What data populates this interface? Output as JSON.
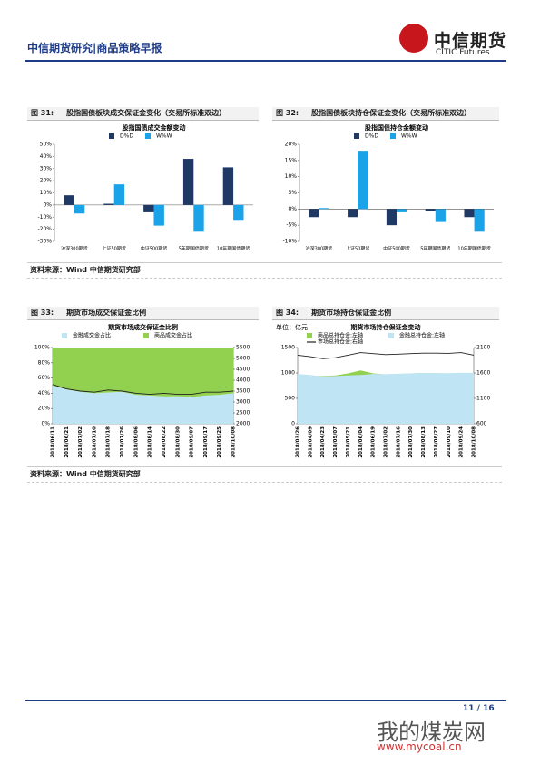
{
  "header": {
    "title": "中信期货研究|商品策略早报",
    "logo_cn": "中信期货",
    "logo_en": "CITIC Futures"
  },
  "chart_data": [
    {
      "type": "bar",
      "figure_label": "图 31:",
      "caption": "股指国债板块成交保证金变化（交易所标准双边）",
      "title": "股指国债成交金额变动",
      "categories": [
        "沪深300期货",
        "上证50期货",
        "中证500期货",
        "5年期国债期货",
        "10年期国债期货"
      ],
      "series": [
        {
          "name": "D%D",
          "color": "#1f3864",
          "values": [
            8,
            1,
            -6,
            38,
            31
          ]
        },
        {
          "name": "W%W",
          "color": "#1aa3e8",
          "values": [
            -7,
            17,
            -17,
            -22,
            -13
          ]
        }
      ],
      "ylim": [
        -30,
        50
      ],
      "yticks": [
        {
          "value": -30,
          "label": "-30%"
        },
        {
          "value": -20,
          "label": "-20%"
        },
        {
          "value": -10,
          "label": "-10%"
        },
        {
          "value": 0,
          "label": "0%"
        },
        {
          "value": 10,
          "label": "10%"
        },
        {
          "value": 20,
          "label": "20%"
        },
        {
          "value": 30,
          "label": "30%"
        },
        {
          "value": 40,
          "label": "40%"
        },
        {
          "value": 50,
          "label": "50%"
        }
      ]
    },
    {
      "type": "bar",
      "figure_label": "图 32:",
      "caption": "股指国债板块持仓保证金变化（交易所标准双边）",
      "title": "股指国债持仓金额变动",
      "categories": [
        "沪深300期货",
        "上证50期货",
        "中证500期货",
        "5年期国债期货",
        "10年期国债期货"
      ],
      "series": [
        {
          "name": "D%D",
          "color": "#1f3864",
          "values": [
            -2.5,
            -2.5,
            -5,
            -0.5,
            -2.5
          ]
        },
        {
          "name": "W%W",
          "color": "#1aa3e8",
          "values": [
            0.3,
            18,
            -1,
            -4,
            -7
          ]
        }
      ],
      "ylim": [
        -10,
        20
      ],
      "yticks": [
        {
          "value": -10,
          "label": "-10%"
        },
        {
          "value": -5,
          "label": "-5%"
        },
        {
          "value": 0,
          "label": "0%"
        },
        {
          "value": 5,
          "label": "5%"
        },
        {
          "value": 10,
          "label": "10%"
        },
        {
          "value": 15,
          "label": "15%"
        },
        {
          "value": 20,
          "label": "20%"
        }
      ]
    },
    {
      "type": "area",
      "figure_label": "图 33:",
      "caption": "期货市场成交保证金比例",
      "title": "期货市场成交保证金比例",
      "stacked": true,
      "x": [
        "2018/06/11",
        "2018/06/21",
        "2018/07/02",
        "2018/07/10",
        "2018/07/18",
        "2018/07/26",
        "2018/08/06",
        "2018/08/14",
        "2018/08/22",
        "2018/08/30",
        "2018/09/07",
        "2018/09/17",
        "2018/09/25",
        "2018/10/08"
      ],
      "series": [
        {
          "name": "金融成交金占比",
          "color": "#bfe5f5",
          "kind": "area",
          "values": [
            50,
            45,
            42,
            40,
            41,
            42,
            38,
            37,
            36,
            36,
            35,
            37,
            38,
            40
          ]
        },
        {
          "name": "商品成交金占比",
          "color": "#92d050",
          "kind": "area",
          "values": [
            50,
            55,
            58,
            60,
            59,
            58,
            62,
            63,
            64,
            64,
            65,
            63,
            62,
            60
          ]
        },
        {
          "color": "#222222",
          "kind": "line",
          "axis": "y2",
          "values": [
            3800,
            3600,
            3500,
            3450,
            3550,
            3500,
            3400,
            3350,
            3400,
            3350,
            3350,
            3450,
            3450,
            3500
          ]
        }
      ],
      "ylim": [
        0,
        100
      ],
      "yticks": [
        {
          "value": 0,
          "label": "0%"
        },
        {
          "value": 20,
          "label": "20%"
        },
        {
          "value": 40,
          "label": "40%"
        },
        {
          "value": 60,
          "label": "60%"
        },
        {
          "value": 80,
          "label": "80%"
        },
        {
          "value": 100,
          "label": "100%"
        }
      ],
      "y2lim": [
        2000,
        5500
      ],
      "y2ticks": [
        2000,
        2500,
        3000,
        3500,
        4000,
        4500,
        5000,
        5500
      ]
    },
    {
      "type": "area",
      "figure_label": "图 34:",
      "caption": "期货市场持仓保证金比例",
      "title": "期货市场持仓保证金变动",
      "unit": "单位：亿元",
      "stacked": false,
      "x": [
        "2018/03/26",
        "2018/04/09",
        "2018/04/23",
        "2018/05/07",
        "2018/05/21",
        "2018/06/04",
        "2018/06/19",
        "2018/07/02",
        "2018/07/16",
        "2018/07/30",
        "2018/08/13",
        "2018/08/27",
        "2018/09/10",
        "2018/09/24",
        "2018/10/08"
      ],
      "series": [
        {
          "name": "商品总持仓金:左轴",
          "color": "#92d050",
          "kind": "area",
          "values": [
            960,
            950,
            940,
            950,
            990,
            1050,
            990,
            970,
            980,
            990,
            1000,
            995,
            990,
            1000,
            1000
          ]
        },
        {
          "name": "金融总持仓金:左轴",
          "color": "#bfe5f5",
          "kind": "area",
          "values": [
            980,
            960,
            930,
            940,
            950,
            960,
            980,
            975,
            985,
            990,
            1000,
            995,
            995,
            1005,
            1000
          ]
        },
        {
          "name": "市场总持仓金:右轴",
          "color": "#222222",
          "kind": "line",
          "axis": "y2",
          "values": [
            1950,
            1920,
            1880,
            1900,
            1950,
            2000,
            1980,
            1960,
            1970,
            1980,
            1990,
            1990,
            1985,
            2000,
            1950
          ]
        }
      ],
      "ylim": [
        0,
        1500
      ],
      "yticks": [
        0,
        500,
        1000,
        1500
      ],
      "y2lim": [
        600,
        2100
      ],
      "y2ticks": [
        600,
        1100,
        1600,
        2100
      ]
    }
  ],
  "sources": [
    "资料来源：Wind  中信期货研究部",
    "资料来源：Wind  中信期货研究部"
  ],
  "footer": {
    "page": "11 / 16"
  },
  "watermark": {
    "name": "我的煤炭网",
    "url": "www.mycoal.cn"
  }
}
